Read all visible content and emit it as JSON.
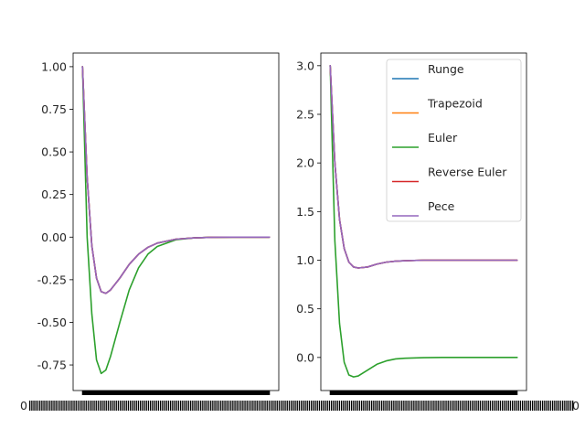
{
  "chart_data": [
    {
      "type": "line",
      "title": "",
      "xlabel": "",
      "ylabel": "",
      "ylim": [
        -0.9,
        1.08
      ],
      "yticks": [
        "1.00",
        "0.75",
        "0.50",
        "0.25",
        "0.00",
        "-0.25",
        "-0.50",
        "-0.75"
      ],
      "ytick_values": [
        1.0,
        0.75,
        0.5,
        0.25,
        0.0,
        -0.25,
        -0.5,
        -0.75
      ],
      "xlim": [
        -0.5,
        10.5
      ],
      "x_tick_labels_overlapping": true,
      "grid": false,
      "legend": null,
      "x": [
        0,
        0.25,
        0.5,
        0.75,
        1,
        1.25,
        1.5,
        2,
        2.5,
        3,
        3.5,
        4,
        5,
        6,
        7,
        8,
        9,
        10
      ],
      "series": [
        {
          "name": "Runge",
          "color": "#1f77b4",
          "values": [
            1.0,
            0.35,
            -0.05,
            -0.24,
            -0.32,
            -0.33,
            -0.31,
            -0.24,
            -0.16,
            -0.1,
            -0.06,
            -0.035,
            -0.012,
            -0.004,
            -0.001,
            0.0,
            0.0,
            0.0
          ]
        },
        {
          "name": "Trapezoid",
          "color": "#ff7f0e",
          "values": [
            1.0,
            0.35,
            -0.05,
            -0.24,
            -0.32,
            -0.33,
            -0.31,
            -0.24,
            -0.16,
            -0.1,
            -0.06,
            -0.035,
            -0.012,
            -0.004,
            -0.001,
            0.0,
            0.0,
            0.0
          ]
        },
        {
          "name": "Euler",
          "color": "#2ca02c",
          "values": [
            1.0,
            0.0,
            -0.45,
            -0.72,
            -0.8,
            -0.78,
            -0.7,
            -0.5,
            -0.31,
            -0.18,
            -0.1,
            -0.055,
            -0.015,
            -0.004,
            -0.001,
            0.0,
            0.0,
            0.0
          ]
        },
        {
          "name": "Reverse Euler",
          "color": "#d62728",
          "values": [
            1.0,
            0.35,
            -0.05,
            -0.24,
            -0.32,
            -0.33,
            -0.31,
            -0.24,
            -0.16,
            -0.1,
            -0.06,
            -0.035,
            -0.012,
            -0.004,
            -0.001,
            0.0,
            0.0,
            0.0
          ]
        },
        {
          "name": "Pece",
          "color": "#9467bd",
          "values": [
            1.0,
            0.35,
            -0.05,
            -0.24,
            -0.32,
            -0.33,
            -0.31,
            -0.24,
            -0.16,
            -0.1,
            -0.06,
            -0.035,
            -0.012,
            -0.004,
            -0.001,
            0.0,
            0.0,
            0.0
          ]
        }
      ]
    },
    {
      "type": "line",
      "title": "",
      "xlabel": "",
      "ylabel": "",
      "ylim": [
        -0.34,
        3.13
      ],
      "yticks": [
        "3.0",
        "2.5",
        "2.0",
        "1.5",
        "1.0",
        "0.5",
        "0.0"
      ],
      "ytick_values": [
        3.0,
        2.5,
        2.0,
        1.5,
        1.0,
        0.5,
        0.0
      ],
      "xlim": [
        -0.5,
        10.5
      ],
      "x_tick_labels_overlapping": true,
      "grid": false,
      "legend": "upper right",
      "x": [
        0,
        0.25,
        0.5,
        0.75,
        1,
        1.25,
        1.5,
        2,
        2.5,
        3,
        3.5,
        4,
        5,
        6,
        7,
        8,
        9,
        10
      ],
      "series": [
        {
          "name": "Runge",
          "color": "#1f77b4",
          "values": [
            3.0,
            2.0,
            1.42,
            1.12,
            0.98,
            0.93,
            0.92,
            0.93,
            0.96,
            0.98,
            0.99,
            0.995,
            1.0,
            1.0,
            1.0,
            1.0,
            1.0,
            1.0
          ]
        },
        {
          "name": "Trapezoid",
          "color": "#ff7f0e",
          "values": [
            3.0,
            2.0,
            1.42,
            1.12,
            0.98,
            0.93,
            0.92,
            0.93,
            0.96,
            0.98,
            0.99,
            0.995,
            1.0,
            1.0,
            1.0,
            1.0,
            1.0,
            1.0
          ]
        },
        {
          "name": "Euler",
          "color": "#2ca02c",
          "values": [
            3.0,
            1.2,
            0.35,
            -0.05,
            -0.18,
            -0.2,
            -0.19,
            -0.13,
            -0.07,
            -0.035,
            -0.015,
            -0.008,
            -0.002,
            0.0,
            0.0,
            0.0,
            0.0,
            0.0
          ]
        },
        {
          "name": "Reverse Euler",
          "color": "#d62728",
          "values": [
            3.0,
            2.0,
            1.42,
            1.12,
            0.98,
            0.93,
            0.92,
            0.93,
            0.96,
            0.98,
            0.99,
            0.995,
            1.0,
            1.0,
            1.0,
            1.0,
            1.0,
            1.0
          ]
        },
        {
          "name": "Pece",
          "color": "#9467bd",
          "values": [
            3.0,
            2.0,
            1.42,
            1.12,
            0.98,
            0.93,
            0.92,
            0.93,
            0.96,
            0.98,
            0.99,
            0.995,
            1.0,
            1.0,
            1.0,
            1.0,
            1.0,
            1.0
          ]
        }
      ]
    }
  ]
}
